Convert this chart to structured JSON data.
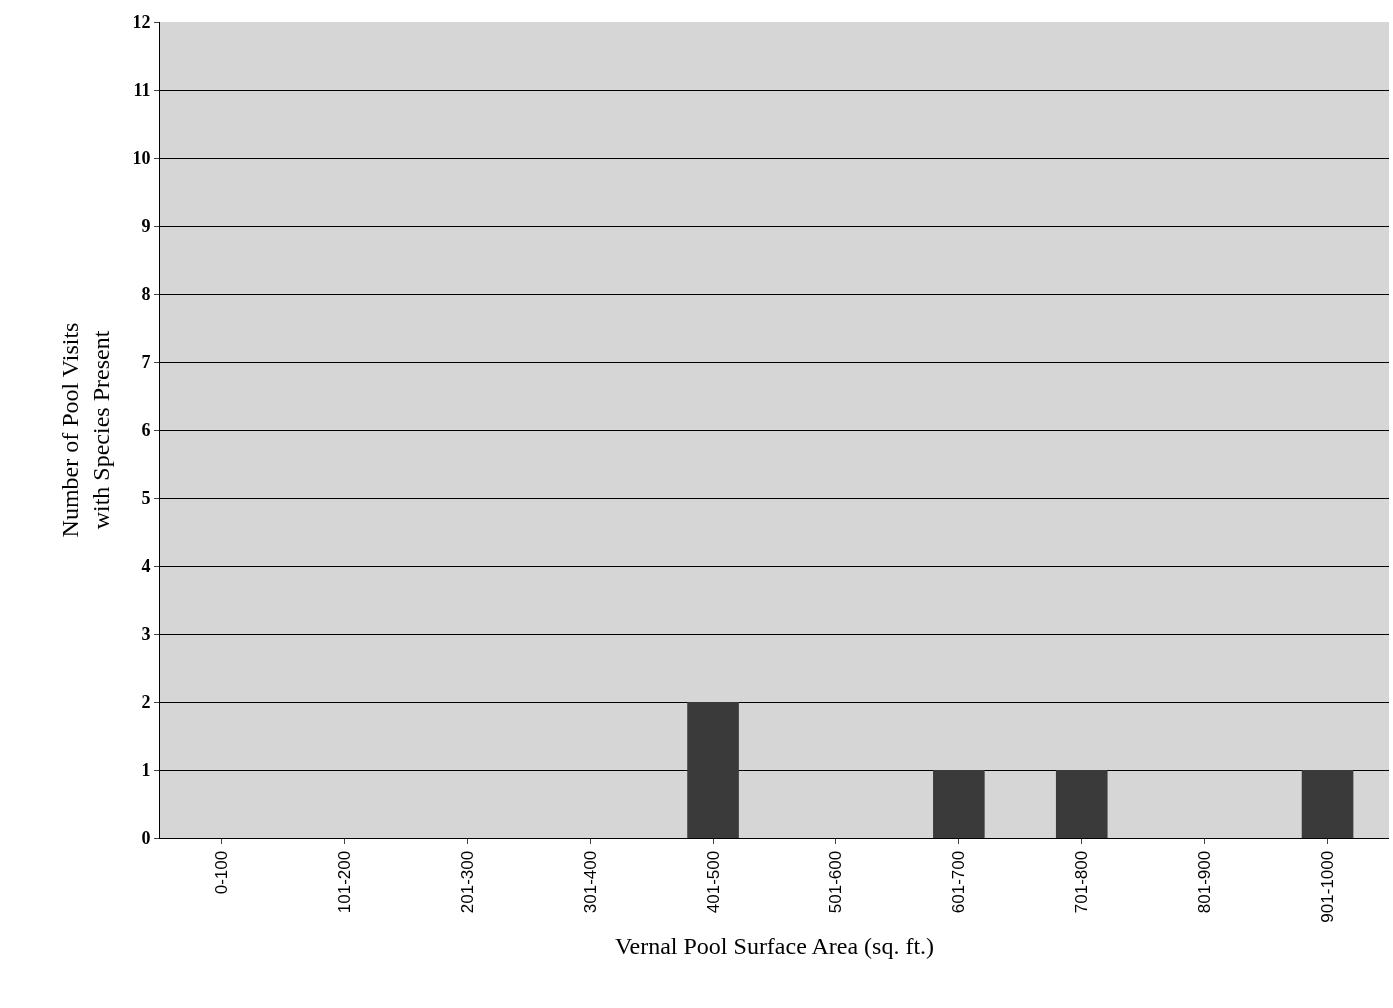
{
  "chart_data": {
    "type": "bar",
    "xlabel": "Vernal Pool Surface Area (sq. ft.)",
    "ylabel": "Number of Pool Visits\nwith Species Present",
    "categories": [
      "0-100",
      "101-200",
      "201-300",
      "301-400",
      "401-500",
      "501-600",
      "601-700",
      "701-800",
      "801-900",
      "901-1000"
    ],
    "values": [
      0,
      0,
      0,
      0,
      2,
      0,
      1,
      1,
      0,
      1
    ],
    "color": "#3a3a3a",
    "ylim": [
      0,
      12
    ],
    "yticks": [
      0,
      1,
      2,
      3,
      4,
      5,
      6,
      7,
      8,
      9,
      10,
      11,
      12
    ],
    "grid": "y",
    "legend": false
  }
}
